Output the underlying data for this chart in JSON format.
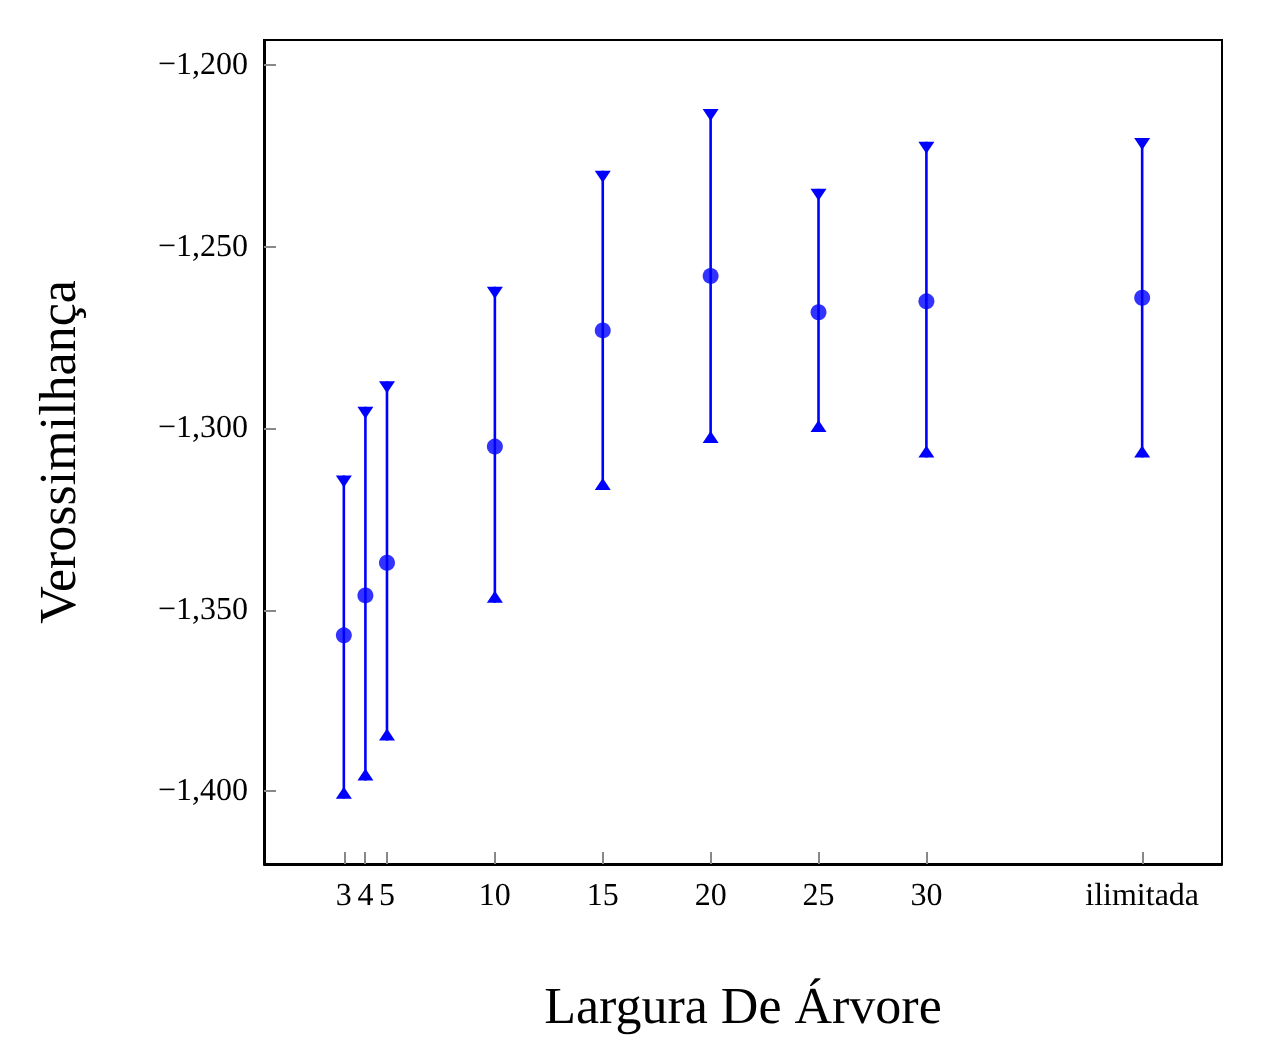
{
  "chart_data": {
    "type": "scatter",
    "xlabel": "Largura De Árvore",
    "ylabel": "Verossimilhança",
    "x": [
      3,
      4,
      5,
      10,
      15,
      20,
      25,
      30,
      40
    ],
    "series": [
      {
        "color": "#0000ff",
        "values": [
          -1357,
          -1346,
          -1337,
          -1305,
          -1273,
          -1258,
          -1268,
          -1265,
          -1264
        ],
        "errors": [
          [
            -1402,
            -1313
          ],
          [
            -1397,
            -1294
          ],
          [
            -1386,
            -1287
          ],
          [
            -1348,
            -1261
          ],
          [
            -1317,
            -1229
          ],
          [
            -1304,
            -1212
          ],
          [
            -1301,
            -1234
          ],
          [
            -1308,
            -1221
          ],
          [
            -1308,
            -1220
          ]
        ]
      }
    ],
    "xlim": [
      -0.7,
      43.7
    ],
    "xticks": [
      3,
      4,
      5,
      10,
      15,
      20,
      25,
      30,
      {
        "value": 40,
        "label": "ilimitada"
      }
    ],
    "ylim": [
      -1420,
      -1193
    ],
    "yticks": [
      {
        "value": -1400,
        "label": "−1,400"
      },
      {
        "value": -1350,
        "label": "−1,350"
      },
      {
        "value": -1300,
        "label": "−1,300"
      },
      {
        "value": -1250,
        "label": "−1,250"
      },
      {
        "value": -1200,
        "label": "−1,200"
      }
    ],
    "marker": "circle",
    "grid": false
  }
}
